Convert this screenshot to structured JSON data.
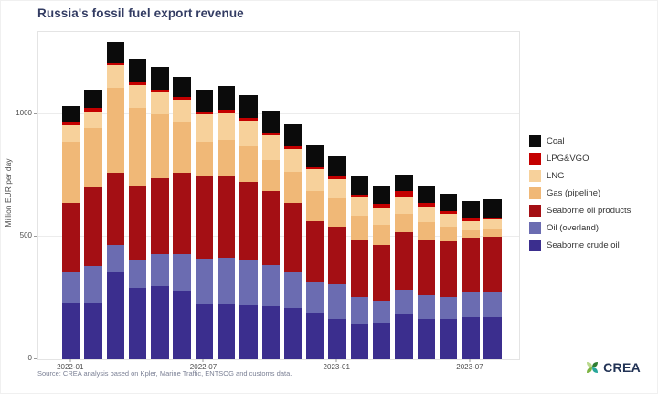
{
  "title": "Russia's fossil fuel export revenue",
  "source_note": "Source: CREA analysis based on Kpler, Marine Traffic, ENTSOG and customs data.",
  "logo_text": "CREA",
  "chart_data": {
    "type": "bar",
    "stacked": true,
    "title": "Russia's fossil fuel export revenue",
    "xlabel": "",
    "ylabel": "Million EUR per day",
    "ylim": [
      0,
      1330
    ],
    "yticks": [
      0,
      500,
      1000
    ],
    "grid": "horizontal-major-only",
    "legend_position": "right",
    "legend_order_top_to_bottom": [
      "Coal",
      "LPG&VGO",
      "LNG",
      "Gas (pipeline)",
      "Seaborne oil products",
      "Oil (overland)",
      "Seaborne crude oil"
    ],
    "categories": [
      "2022-01",
      "2022-02",
      "2022-03",
      "2022-04",
      "2022-05",
      "2022-06",
      "2022-07",
      "2022-08",
      "2022-09",
      "2022-10",
      "2022-11",
      "2022-12",
      "2023-01",
      "2023-02",
      "2023-03",
      "2023-04",
      "2023-05",
      "2023-06",
      "2023-07",
      "2023-08"
    ],
    "xtick_labels_shown": [
      "2022-01",
      "2022-07",
      "2023-01",
      "2023-07"
    ],
    "series_bottom_to_top": [
      {
        "name": "Seaborne crude oil",
        "color": "#3b2e8e",
        "values": [
          230,
          230,
          355,
          290,
          300,
          280,
          225,
          225,
          220,
          215,
          210,
          190,
          165,
          145,
          150,
          185,
          165,
          165,
          170,
          170
        ]
      },
      {
        "name": "Oil (overland)",
        "color": "#6b6cb1",
        "values": [
          130,
          150,
          110,
          115,
          130,
          150,
          185,
          190,
          185,
          170,
          150,
          125,
          140,
          110,
          90,
          100,
          95,
          90,
          105,
          105
        ]
      },
      {
        "name": "Seaborne oil products",
        "color": "#a40f14",
        "values": [
          280,
          320,
          295,
          300,
          310,
          330,
          340,
          330,
          320,
          300,
          280,
          250,
          235,
          230,
          225,
          235,
          230,
          225,
          220,
          225
        ]
      },
      {
        "name": "Gas (pipeline)",
        "color": "#f0b877",
        "values": [
          250,
          245,
          350,
          320,
          260,
          210,
          140,
          150,
          145,
          130,
          125,
          120,
          115,
          100,
          85,
          75,
          70,
          60,
          30,
          35
        ]
      },
      {
        "name": "LNG",
        "color": "#f7d19b",
        "values": [
          65,
          65,
          90,
          95,
          90,
          90,
          110,
          110,
          105,
          100,
          95,
          90,
          80,
          75,
          70,
          70,
          65,
          55,
          40,
          35
        ]
      },
      {
        "name": "LPG&VGO",
        "color": "#c40000",
        "values": [
          10,
          15,
          10,
          10,
          10,
          10,
          10,
          15,
          10,
          10,
          10,
          10,
          10,
          10,
          15,
          20,
          15,
          10,
          10,
          10
        ]
      },
      {
        "name": "Coal",
        "color": "#0b0b0b",
        "values": [
          70,
          75,
          85,
          95,
          95,
          85,
          90,
          95,
          95,
          90,
          90,
          90,
          85,
          80,
          70,
          70,
          70,
          70,
          70,
          75
        ]
      }
    ],
    "totals": [
      1035,
      1100,
      1295,
      1225,
      1195,
      1155,
      1100,
      1115,
      1080,
      1015,
      960,
      875,
      830,
      750,
      705,
      755,
      710,
      675,
      645,
      655
    ]
  },
  "colors": {
    "title": "#333c63",
    "axis_text": "#4d4d4d",
    "gridline": "#ececec",
    "source_text": "#7b8095",
    "logo_text": "#223355"
  }
}
